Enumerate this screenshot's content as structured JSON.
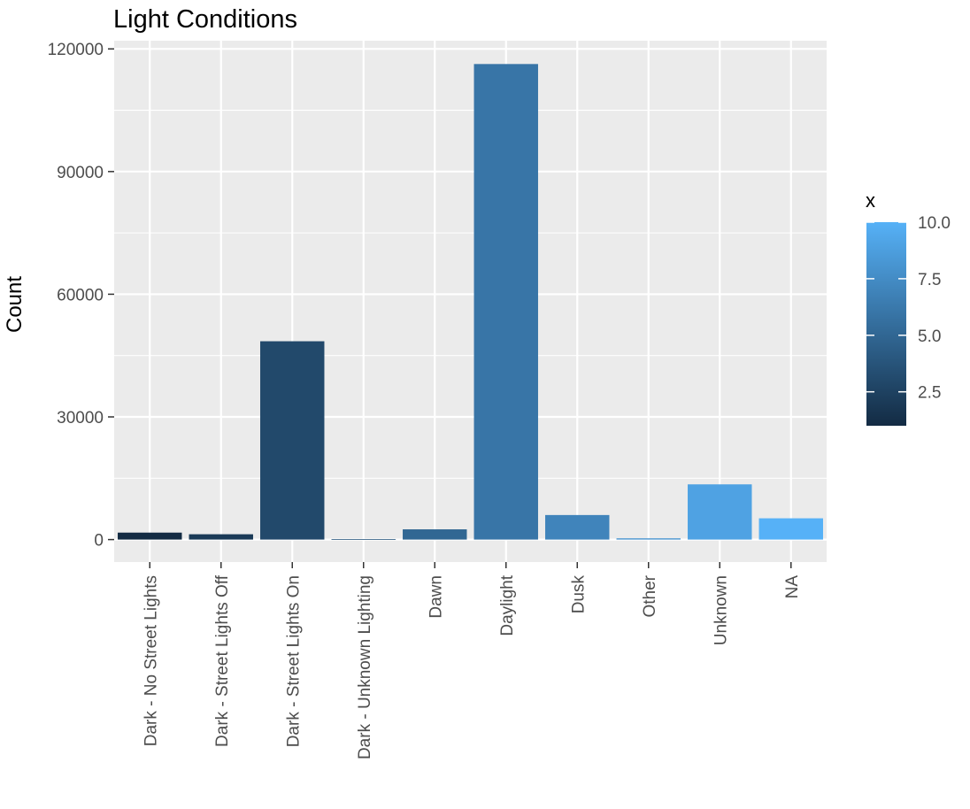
{
  "chart_data": {
    "type": "bar",
    "title": "Light Conditions",
    "xlabel": "",
    "ylabel": "Count",
    "categories": [
      "Dark - No Street Lights",
      "Dark - Street Lights Off",
      "Dark - Street Lights On",
      "Dark - Unknown Lighting",
      "Dawn",
      "Daylight",
      "Dusk",
      "Other",
      "Unknown",
      "NA"
    ],
    "values": [
      1700,
      1300,
      48500,
      100,
      2500,
      116300,
      6000,
      300,
      13500,
      5200
    ],
    "color_values": [
      1,
      2,
      3,
      4,
      5,
      6,
      7,
      8,
      9,
      10
    ],
    "ylim": [
      -5500,
      122000
    ],
    "yticks": [
      0,
      30000,
      60000,
      90000,
      120000
    ],
    "ytick_labels": [
      "0",
      "30000",
      "60000",
      "90000",
      "120000"
    ],
    "grid": true,
    "legend": {
      "title": "x",
      "placement": "right",
      "range": [
        1,
        10
      ],
      "ticks": [
        2.5,
        5.0,
        7.5,
        10.0
      ],
      "tick_labels": [
        "2.5",
        "5.0",
        "7.5",
        "10.0"
      ],
      "color_low": "#132B43",
      "color_high": "#56B1F7"
    },
    "panel_background": "#EBEBEB",
    "grid_color": "#FFFFFF"
  }
}
